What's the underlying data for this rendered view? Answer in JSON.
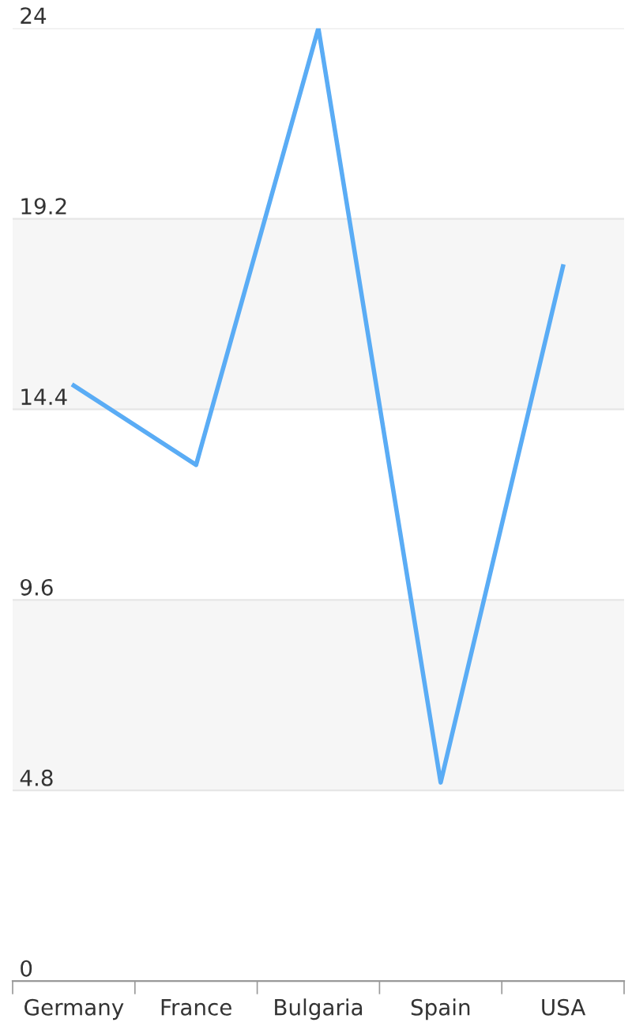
{
  "chart_data": {
    "type": "line",
    "categories": [
      "Germany",
      "France",
      "Bulgaria",
      "Spain",
      "USA"
    ],
    "series": [
      {
        "color": "#5aacf5",
        "values": [
          15,
          13,
          24,
          5,
          18
        ]
      }
    ],
    "ylim": [
      0,
      24
    ],
    "yticks": [
      0,
      4.8,
      9.6,
      14.4,
      19.2,
      24
    ],
    "grid": "y",
    "marker": "none",
    "line_style": "solid"
  }
}
